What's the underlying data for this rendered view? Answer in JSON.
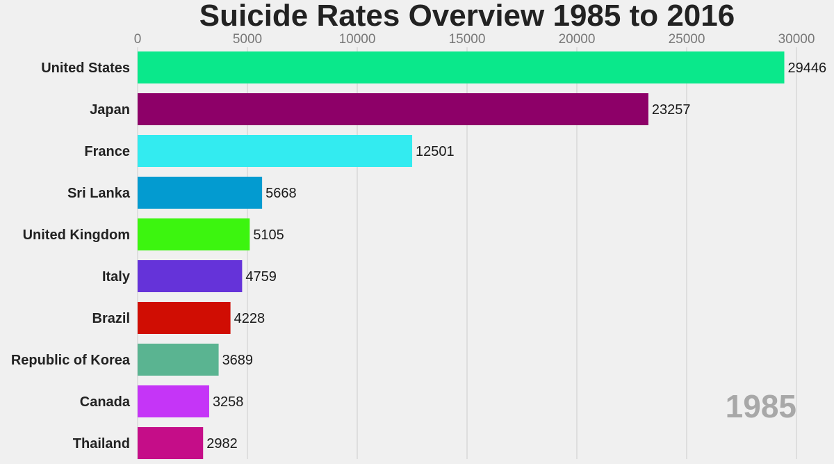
{
  "chart_data": {
    "type": "bar",
    "orientation": "horizontal",
    "title": "Suicide Rates Overview 1985 to 2016",
    "annotation": "1985",
    "xlim": [
      0,
      30000
    ],
    "xticks": [
      "0",
      "5000",
      "10000",
      "15000",
      "20000",
      "25000",
      "30000"
    ],
    "xtick_values": [
      0,
      5000,
      10000,
      15000,
      20000,
      25000,
      30000
    ],
    "grid": true,
    "legend": "none",
    "categories": [
      "United States",
      "Japan",
      "France",
      "Sri Lanka",
      "United Kingdom",
      "Italy",
      "Brazil",
      "Republic of Korea",
      "Canada",
      "Thailand"
    ],
    "values": [
      29446,
      23257,
      12501,
      5668,
      5105,
      4759,
      4228,
      3689,
      3258,
      2982
    ],
    "colors": [
      "#0ae88b",
      "#8d0068",
      "#33ebf0",
      "#039bd0",
      "#3cf50f",
      "#6533d9",
      "#d00d03",
      "#5ab491",
      "#c535f7",
      "#c50d88"
    ]
  }
}
